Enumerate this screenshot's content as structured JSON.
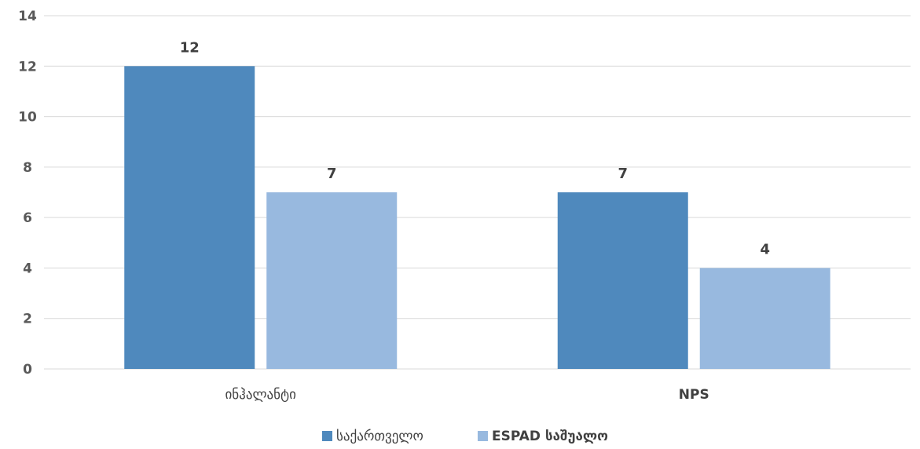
{
  "chart_data": {
    "type": "bar",
    "categories": [
      "ინჰალანტი",
      "NPS"
    ],
    "series": [
      {
        "name": "საქართველო",
        "values": [
          12,
          7
        ],
        "color": "#4f89bd"
      },
      {
        "name": "ESPAD საშუალო",
        "values": [
          7,
          4
        ],
        "color": "#98b9df"
      }
    ],
    "ylim": [
      0,
      14
    ],
    "yticks": [
      0,
      2,
      4,
      6,
      8,
      10,
      12,
      14
    ],
    "grid": true,
    "legend_position": "bottom",
    "data_labels": true
  }
}
